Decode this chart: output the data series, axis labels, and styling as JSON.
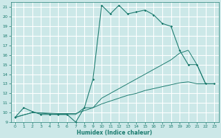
{
  "bg_color": "#cce8e8",
  "grid_color": "#ffffff",
  "line_color": "#1a7a6e",
  "xlabel": "Humidex (Indice chaleur)",
  "xlim": [
    -0.5,
    23.5
  ],
  "ylim": [
    9,
    21.5
  ],
  "xticks": [
    0,
    1,
    2,
    3,
    4,
    5,
    6,
    7,
    8,
    9,
    10,
    11,
    12,
    13,
    14,
    15,
    16,
    17,
    18,
    19,
    20,
    21,
    22,
    23
  ],
  "yticks": [
    9,
    10,
    11,
    12,
    13,
    14,
    15,
    16,
    17,
    18,
    19,
    20,
    21
  ],
  "line1_x": [
    0,
    1,
    2,
    3,
    4,
    5,
    6,
    7,
    8,
    9,
    10,
    11,
    12,
    13,
    14,
    15,
    16,
    17,
    18,
    19,
    20,
    21,
    22,
    23
  ],
  "line1_y": [
    9.5,
    10.5,
    10.1,
    9.8,
    9.8,
    9.8,
    9.8,
    9.0,
    10.5,
    13.5,
    21.2,
    20.3,
    21.2,
    20.3,
    20.5,
    20.7,
    20.2,
    19.3,
    19.0,
    16.5,
    15.0,
    15.0,
    13.0,
    13.0
  ],
  "line2_x": [
    0,
    2,
    5,
    6,
    7,
    8,
    9,
    10,
    11,
    12,
    13,
    14,
    15,
    16,
    17,
    18,
    19,
    20,
    21,
    22,
    23
  ],
  "line2_y": [
    9.5,
    10.0,
    9.8,
    9.8,
    9.8,
    10.5,
    10.5,
    11.5,
    12.0,
    12.5,
    13.0,
    13.5,
    14.0,
    14.5,
    15.0,
    15.5,
    16.2,
    16.5,
    15.0,
    13.0,
    13.0
  ],
  "line3_x": [
    0,
    2,
    5,
    6,
    7,
    8,
    9,
    10,
    11,
    12,
    13,
    14,
    15,
    16,
    17,
    18,
    19,
    20,
    21,
    22,
    23
  ],
  "line3_y": [
    9.5,
    10.0,
    9.9,
    9.9,
    9.9,
    10.2,
    10.5,
    10.9,
    11.2,
    11.5,
    11.8,
    12.0,
    12.3,
    12.5,
    12.7,
    12.9,
    13.1,
    13.2,
    13.0,
    13.0,
    13.0
  ]
}
